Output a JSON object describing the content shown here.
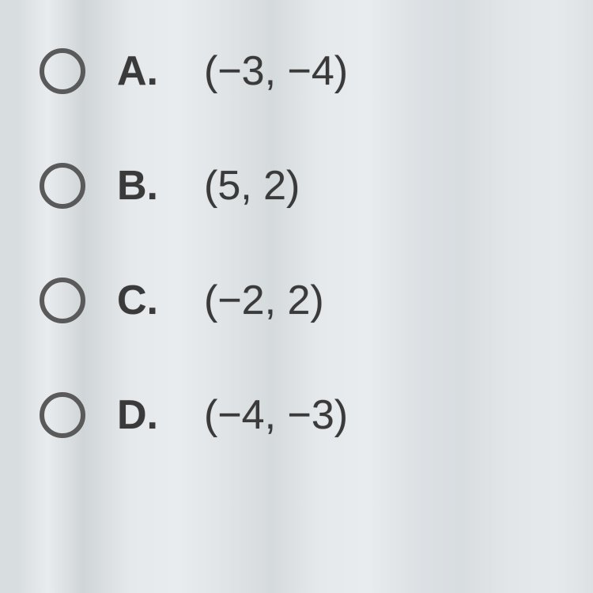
{
  "question": {
    "options": [
      {
        "letter": "A.",
        "value": "(−3, −4)",
        "selected": false
      },
      {
        "letter": "B.",
        "value": "(5, 2)",
        "selected": false
      },
      {
        "letter": "C.",
        "value": "(−2, 2)",
        "selected": false
      },
      {
        "letter": "D.",
        "value": "(−4, −3)",
        "selected": false
      }
    ]
  },
  "styling": {
    "background_gradient_colors": [
      "#d8dde0",
      "#e8ecee",
      "#d0d5d8",
      "#e5e9eb"
    ],
    "text_color": "#3a3a3a",
    "radio_border_color": "#5a5a5a",
    "font_size_label": 52,
    "font_size_value": 52,
    "radio_size": 58,
    "radio_border_width": 6,
    "row_gap": 85
  }
}
